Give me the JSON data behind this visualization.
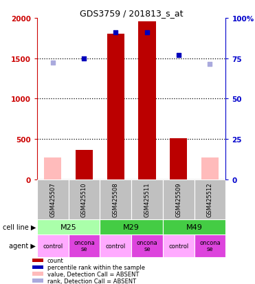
{
  "title": "GDS3759 / 201813_s_at",
  "samples": [
    "GSM425507",
    "GSM425510",
    "GSM425508",
    "GSM425511",
    "GSM425509",
    "GSM425512"
  ],
  "bar_values": [
    270,
    370,
    1800,
    1960,
    510,
    270
  ],
  "bar_absent": [
    true,
    false,
    false,
    false,
    false,
    true
  ],
  "rank_values": [
    72.5,
    75,
    91,
    91,
    77,
    71.5
  ],
  "rank_absent": [
    true,
    false,
    false,
    false,
    false,
    true
  ],
  "bar_color_present": "#BB0000",
  "bar_color_absent": "#FFBBBB",
  "dot_color_present": "#0000BB",
  "dot_color_absent": "#AAAADD",
  "ylim_left": [
    0,
    2000
  ],
  "ylim_right": [
    0,
    100
  ],
  "yticks_left": [
    0,
    500,
    1000,
    1500,
    2000
  ],
  "yticks_right": [
    0,
    25,
    50,
    75,
    100
  ],
  "ytick_labels_left": [
    "0",
    "500",
    "1000",
    "1500",
    "2000"
  ],
  "ytick_labels_right": [
    "0",
    "25",
    "50",
    "75",
    "100%"
  ],
  "left_axis_color": "#CC0000",
  "right_axis_color": "#0000CC",
  "sample_bg_color": "#C0C0C0",
  "cell_line_colors": [
    "#AAFFAA",
    "#44CC44",
    "#44CC44"
  ],
  "agent_control_color": "#FFAAFF",
  "agent_onco_color": "#DD44DD",
  "legend_items": [
    {
      "color": "#BB0000",
      "label": "count"
    },
    {
      "color": "#0000BB",
      "label": "percentile rank within the sample"
    },
    {
      "color": "#FFBBBB",
      "label": "value, Detection Call = ABSENT"
    },
    {
      "color": "#AAAADD",
      "label": "rank, Detection Call = ABSENT"
    }
  ]
}
